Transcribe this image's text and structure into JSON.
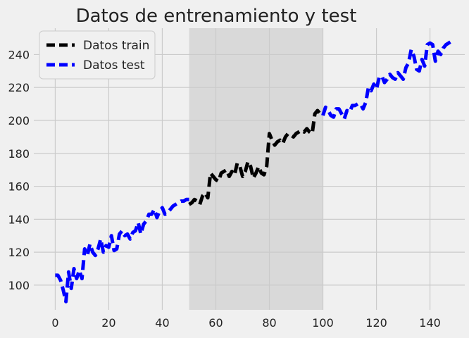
{
  "chart_data": {
    "type": "line",
    "title": "Datos de entrenamiento y test",
    "xlabel": "",
    "ylabel": "",
    "xlim": [
      -8,
      153
    ],
    "ylim": [
      85,
      256
    ],
    "x_ticks": [
      0,
      20,
      40,
      60,
      80,
      100,
      120,
      140
    ],
    "y_ticks": [
      100,
      120,
      140,
      160,
      180,
      200,
      220,
      240
    ],
    "grid": true,
    "legend_position": "top-left",
    "shaded_region": {
      "x_start": 50,
      "x_end": 100,
      "color": "#d9d9d9"
    },
    "series": [
      {
        "name": "Datos test",
        "color": "#0000ff",
        "x": [
          0,
          1,
          2,
          3,
          4,
          5,
          6,
          7,
          8,
          9,
          10,
          11,
          12,
          13,
          14,
          15,
          16,
          17,
          18,
          19,
          20,
          21,
          22,
          23,
          24,
          25,
          26,
          27,
          28,
          29,
          30,
          31,
          32,
          33,
          34,
          35,
          36,
          37,
          38,
          39,
          40,
          41,
          42,
          43,
          44,
          45,
          46,
          47,
          48,
          49,
          50
        ],
        "y": [
          106,
          106,
          103,
          97,
          90,
          108,
          98,
          110,
          104,
          109,
          104,
          122,
          118,
          125,
          120,
          118,
          122,
          128,
          120,
          124,
          123,
          130,
          121,
          122,
          131,
          133,
          130,
          131,
          128,
          132,
          133,
          138,
          131,
          137,
          139,
          143,
          143,
          146,
          141,
          145,
          147,
          143,
          144,
          146,
          148,
          149,
          150,
          151,
          151,
          152,
          152
        ]
      },
      {
        "name": "Datos train",
        "color": "#000000",
        "x": [
          50,
          51,
          52,
          53,
          54,
          55,
          56,
          57,
          58,
          59,
          60,
          61,
          62,
          63,
          64,
          65,
          66,
          67,
          68,
          69,
          70,
          71,
          72,
          73,
          74,
          75,
          76,
          77,
          78,
          79,
          80,
          81,
          82,
          83,
          84,
          85,
          86,
          87,
          88,
          89,
          90,
          91,
          92,
          93,
          94,
          95,
          96,
          97,
          98,
          99,
          100
        ],
        "y": [
          149,
          150,
          152,
          151,
          149,
          154,
          156,
          153,
          168,
          166,
          164,
          163,
          168,
          169,
          170,
          166,
          169,
          167,
          174,
          172,
          166,
          169,
          175,
          172,
          165,
          168,
          172,
          168,
          167,
          172,
          192,
          188,
          185,
          187,
          188,
          186,
          190,
          192,
          191,
          190,
          192,
          193,
          194,
          193,
          195,
          193,
          192,
          204,
          206,
          204,
          203
        ]
      },
      {
        "name": "Datos test",
        "color": "#0000ff",
        "x": [
          100,
          101,
          102,
          103,
          104,
          105,
          106,
          107,
          108,
          109,
          110,
          111,
          112,
          113,
          114,
          115,
          116,
          117,
          118,
          119,
          120,
          121,
          122,
          123,
          124,
          125,
          126,
          127,
          128,
          129,
          130,
          131,
          132,
          133,
          134,
          135,
          136,
          137,
          138,
          139,
          140,
          141,
          142,
          143,
          144,
          145,
          146,
          147,
          148,
          149
        ],
        "y": [
          203,
          208,
          206,
          203,
          202,
          207,
          207,
          204,
          201,
          206,
          205,
          209,
          209,
          210,
          210,
          207,
          211,
          220,
          218,
          222,
          219,
          226,
          227,
          223,
          225,
          228,
          226,
          225,
          229,
          227,
          225,
          232,
          235,
          243,
          239,
          231,
          230,
          237,
          233,
          246,
          247,
          246,
          236,
          242,
          240,
          244,
          246,
          247,
          248,
          249
        ]
      }
    ],
    "legend": [
      {
        "label": "Datos train",
        "color": "#000000"
      },
      {
        "label": "Datos test",
        "color": "#0000ff"
      }
    ]
  }
}
